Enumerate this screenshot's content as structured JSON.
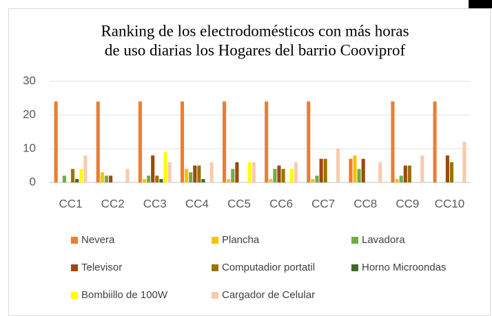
{
  "chart_data": {
    "type": "bar",
    "title": [
      "Ranking de los electrodomésticos con más horas",
      "de uso diarias los Hogares del barrio Cooviprof"
    ],
    "categories": [
      "CC1",
      "CC2",
      "CC3",
      "CC4",
      "CC5",
      "CC6",
      "CC7",
      "CC8",
      "CC9",
      "CC10"
    ],
    "series": [
      {
        "name": "Nevera",
        "color": "#ED7D31",
        "values": [
          24,
          24,
          24,
          24,
          24,
          24,
          24,
          7,
          24,
          24
        ]
      },
      {
        "name": "Plancha",
        "color": "#FFC000",
        "values": [
          0,
          3,
          1,
          4,
          1,
          1,
          1,
          8,
          1,
          0
        ]
      },
      {
        "name": "Lavadora",
        "color": "#70AD47",
        "values": [
          2,
          2,
          2,
          3,
          4,
          4,
          2,
          4,
          2,
          0
        ]
      },
      {
        "name": "Televisor",
        "color": "#9E480E",
        "values": [
          0,
          2,
          8,
          5,
          6,
          5,
          7,
          7,
          5,
          8
        ]
      },
      {
        "name": "Computadior portatil",
        "color": "#997300",
        "values": [
          4,
          0,
          2,
          5,
          0,
          4,
          7,
          0,
          5,
          6
        ]
      },
      {
        "name": "Horno Microondas",
        "color": "#43682B",
        "values": [
          1,
          0,
          1,
          1,
          0,
          0,
          0,
          0,
          0,
          0
        ]
      },
      {
        "name": "Bombiillo de 100W",
        "color": "#FFFF00",
        "values": [
          4,
          0,
          9,
          0,
          6,
          4,
          0,
          0,
          0,
          0
        ]
      },
      {
        "name": "Cargador de Celular",
        "color": "#F8CBAD",
        "values": [
          8,
          4,
          6,
          6,
          6,
          6,
          10,
          6,
          8,
          12
        ]
      }
    ],
    "ylim": [
      0,
      30
    ],
    "yticks": [
      0,
      10,
      20,
      30
    ],
    "grid": true,
    "legend": "bottom"
  }
}
